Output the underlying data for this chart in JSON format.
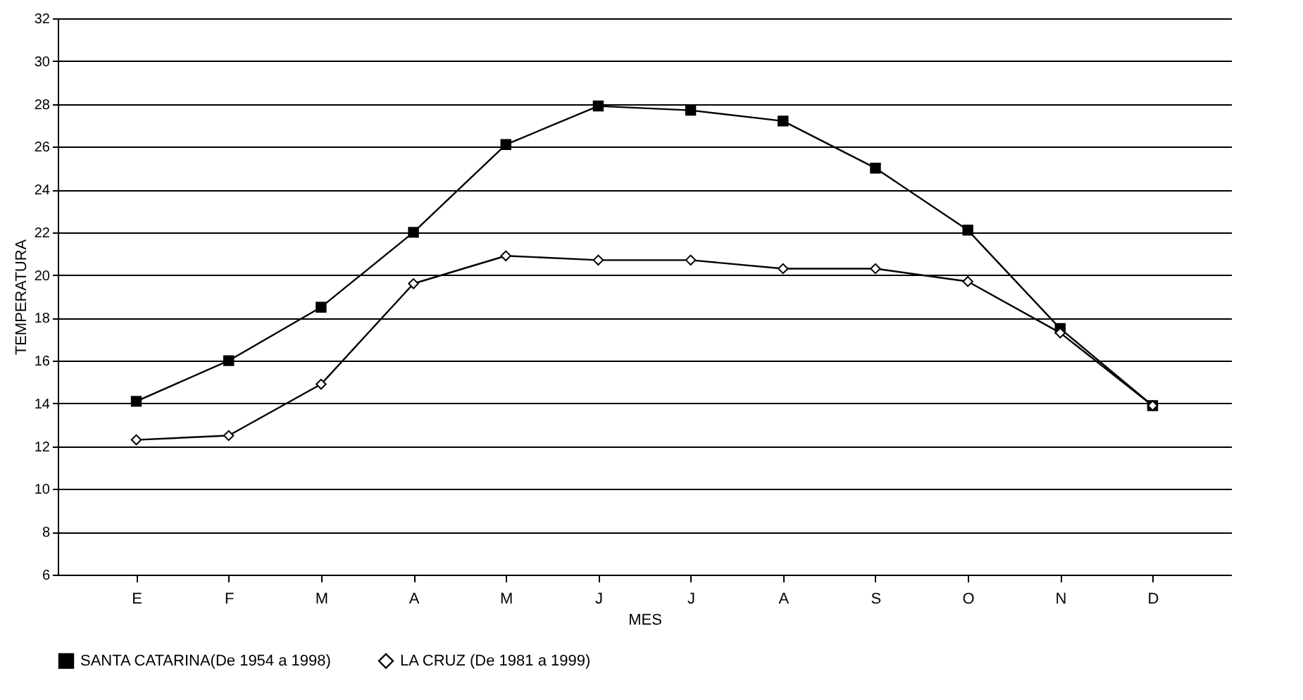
{
  "chart_data": {
    "type": "line",
    "xlabel": "MES",
    "ylabel": "TEMPERATURA",
    "categories": [
      "E",
      "F",
      "M",
      "A",
      "M",
      "J",
      "J",
      "A",
      "S",
      "O",
      "N",
      "D"
    ],
    "series": [
      {
        "name": "SANTA CATARINA(De 1954 a 1998)",
        "color": "#000000",
        "marker": "square",
        "values": [
          14.1,
          16,
          18.5,
          22,
          26.1,
          27.9,
          27.7,
          27.2,
          25,
          22.1,
          17.5,
          13.9
        ]
      },
      {
        "name": "LA CRUZ (De 1981 a 1999)",
        "color": "#000000",
        "marker": "diamond",
        "values": [
          12.3,
          12.5,
          14.9,
          19.6,
          20.9,
          20.7,
          20.7,
          20.3,
          20.3,
          19.7,
          17.3,
          13.9
        ]
      }
    ],
    "ylim": [
      6,
      32
    ],
    "yticks": [
      6,
      8,
      10,
      12,
      14,
      16,
      18,
      20,
      22,
      24,
      26,
      28,
      30,
      32
    ],
    "grid": "y",
    "legend": "bottom",
    "line_style": "solid"
  }
}
